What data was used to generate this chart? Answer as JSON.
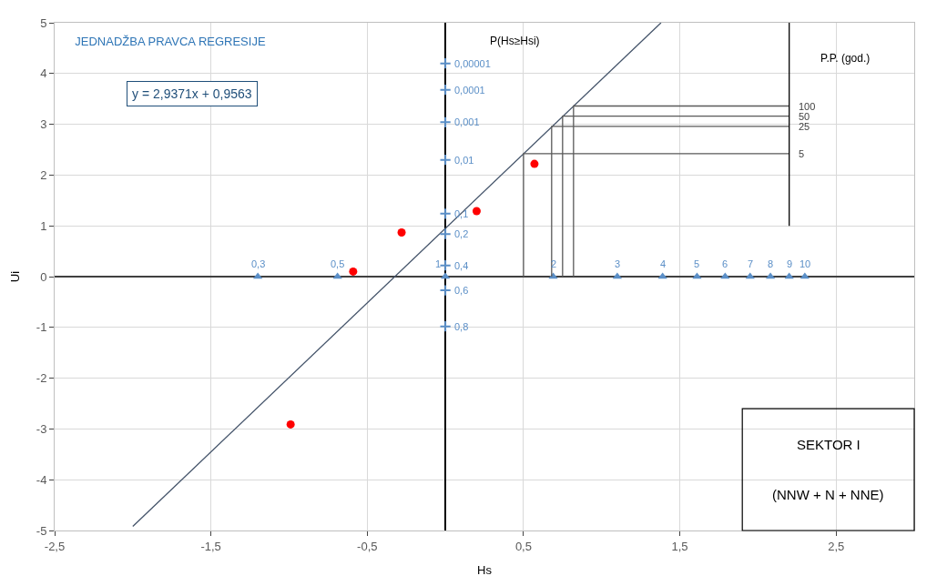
{
  "chart_data": {
    "type": "scatter",
    "title": "JEDNADŽBA PRAVCA REGRESIJE",
    "xlabel": "Hs",
    "ylabel": "Ui",
    "annotations": [
      "y = 2,9371x + 0,9563",
      "P(Hs≥Hsi)",
      "P.P. (god.)",
      "SEKTOR I",
      "(NNW + N + NNE)",
      {
        "text": "0,3",
        "x": -1.2,
        "y": 0
      },
      {
        "text": "0,5",
        "x": -0.69,
        "y": 0
      },
      {
        "text": "1",
        "x": 0,
        "y": 0
      },
      {
        "text": "2",
        "x": 0.69,
        "y": 0
      },
      {
        "text": "3",
        "x": 1.1,
        "y": 0
      },
      {
        "text": "4",
        "x": 1.39,
        "y": 0
      },
      {
        "text": "5",
        "x": 1.61,
        "y": 0
      },
      {
        "text": "6",
        "x": 1.79,
        "y": 0
      },
      {
        "text": "7",
        "x": 1.95,
        "y": 0
      },
      {
        "text": "8",
        "x": 2.08,
        "y": 0
      },
      {
        "text": "9",
        "x": 2.2,
        "y": 0
      },
      {
        "text": "10",
        "x": 2.3,
        "y": 0
      },
      {
        "text": "0,00001",
        "x": 0,
        "y": 4.2
      },
      {
        "text": "0,0001",
        "x": 0,
        "y": 3.68
      },
      {
        "text": "0,001",
        "x": 0,
        "y": 3.04
      },
      {
        "text": "0,01",
        "x": 0,
        "y": 2.3
      },
      {
        "text": "0,1",
        "x": 0,
        "y": 1.24
      },
      {
        "text": "0,2",
        "x": 0,
        "y": 0.84
      },
      {
        "text": "0,4",
        "x": 0,
        "y": 0.22
      },
      {
        "text": "0,6",
        "x": 0,
        "y": -0.27
      },
      {
        "text": "0,8",
        "x": 0,
        "y": -0.98
      },
      {
        "text": "100",
        "x": 2.2,
        "y": 3.36
      },
      {
        "text": "50",
        "x": 2.2,
        "y": 3.16
      },
      {
        "text": "25",
        "x": 2.2,
        "y": 2.96
      },
      {
        "text": "5",
        "x": 2.2,
        "y": 2.42
      }
    ],
    "xlim": [
      -2.5,
      3
    ],
    "ylim": [
      -5,
      5
    ],
    "xticks": [
      {
        "value": -2.5,
        "label": "-2,5"
      },
      {
        "value": -1.5,
        "label": "-1,5"
      },
      {
        "value": -0.5,
        "label": "-0,5"
      },
      {
        "value": 0.5,
        "label": "0,5"
      },
      {
        "value": 1.5,
        "label": "1,5"
      },
      {
        "value": 2.5,
        "label": "2,5"
      }
    ],
    "yticks": [
      -5,
      -4,
      -3,
      -2,
      -1,
      0,
      1,
      2,
      3,
      4,
      5
    ],
    "grid": true,
    "series": [
      {
        "marker": "circle",
        "color": "#ff0000",
        "x": [
          -0.99,
          -0.59,
          -0.28,
          0.2,
          0.57
        ],
        "values": [
          -2.91,
          0.1,
          0.87,
          1.29,
          2.22
        ]
      },
      {
        "type": "line",
        "color": "#44546a",
        "x": [
          -2.0,
          1.38
        ],
        "values": [
          -4.92,
          5
        ]
      },
      {
        "marker": "triangle",
        "color": "#5b8fc7",
        "x": [
          -1.2,
          -0.69,
          0,
          0.69,
          1.1,
          1.39,
          1.61,
          1.79,
          1.95,
          2.08,
          2.2,
          2.3
        ],
        "values": [
          0,
          0,
          0,
          0,
          0,
          0,
          0,
          0,
          0,
          0,
          0,
          0
        ]
      },
      {
        "marker": "cross",
        "color": "#5b8fc7",
        "x": [
          0,
          0,
          0,
          0,
          0,
          0,
          0,
          0,
          0
        ],
        "values": [
          4.2,
          3.68,
          3.04,
          2.3,
          1.24,
          0.84,
          0.22,
          -0.27,
          -0.98
        ]
      },
      {
        "type": "line",
        "color": "#595959",
        "x": [
          2.2,
          0.82,
          0.82
        ],
        "values": [
          3.36,
          3.36,
          0
        ]
      },
      {
        "type": "line",
        "color": "#595959",
        "x": [
          2.2,
          0.75,
          0.75
        ],
        "values": [
          3.16,
          3.16,
          0
        ]
      },
      {
        "type": "line",
        "color": "#595959",
        "x": [
          2.2,
          0.68,
          0.68
        ],
        "values": [
          2.96,
          2.96,
          0
        ]
      },
      {
        "type": "line",
        "color": "#595959",
        "x": [
          2.2,
          0.5,
          0.5
        ],
        "values": [
          2.42,
          2.42,
          0
        ]
      },
      {
        "type": "line",
        "color": "#000000",
        "x": [
          2.2,
          2.2
        ],
        "values": [
          1,
          5
        ]
      }
    ]
  }
}
